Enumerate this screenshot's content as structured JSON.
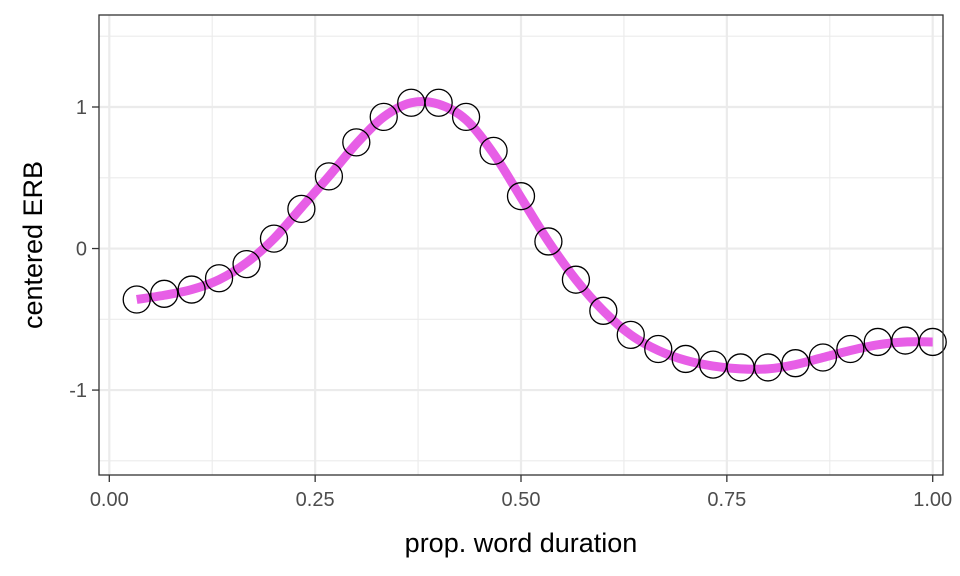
{
  "chart_data": {
    "type": "line",
    "title": "",
    "xlabel": "prop. word duration",
    "ylabel": "centered ERB",
    "xlim": [
      -0.0125,
      1.0125
    ],
    "ylim": [
      -1.6,
      1.65
    ],
    "x_ticks": [
      0.0,
      0.25,
      0.5,
      0.75,
      1.0
    ],
    "x_tick_labels": [
      "0.00",
      "0.25",
      "0.50",
      "0.75",
      "1.00"
    ],
    "y_ticks": [
      -1,
      0,
      1
    ],
    "y_tick_labels": [
      "-1",
      "0",
      "1"
    ],
    "grid": true,
    "legend": "none",
    "colors": {
      "line": "#e75ee6",
      "points_stroke": "#000000",
      "points_fill": "#ffffff",
      "grid": "#ebebeb"
    },
    "series": [
      {
        "type": "scatter",
        "x": [
          0.0333,
          0.0667,
          0.1,
          0.1333,
          0.1667,
          0.2,
          0.2333,
          0.2667,
          0.3,
          0.3333,
          0.3667,
          0.4,
          0.4333,
          0.4667,
          0.5,
          0.5333,
          0.5667,
          0.6,
          0.6333,
          0.6667,
          0.7,
          0.7333,
          0.7667,
          0.8,
          0.8333,
          0.8667,
          0.9,
          0.9333,
          0.9667,
          1.0
        ],
        "y": [
          -0.36,
          -0.32,
          -0.29,
          -0.21,
          -0.11,
          0.07,
          0.28,
          0.51,
          0.75,
          0.93,
          1.03,
          1.03,
          0.93,
          0.69,
          0.37,
          0.05,
          -0.22,
          -0.44,
          -0.61,
          -0.71,
          -0.78,
          -0.82,
          -0.84,
          -0.84,
          -0.81,
          -0.77,
          -0.71,
          -0.66,
          -0.65,
          -0.66
        ]
      },
      {
        "type": "line",
        "x": [
          0.0333,
          0.0667,
          0.1,
          0.1333,
          0.1667,
          0.2,
          0.2333,
          0.2667,
          0.3,
          0.3333,
          0.3667,
          0.4,
          0.4333,
          0.4667,
          0.5,
          0.5333,
          0.5667,
          0.6,
          0.6333,
          0.6667,
          0.7,
          0.7333,
          0.7667,
          0.8,
          0.8333,
          0.8667,
          0.9,
          0.9333,
          0.9667,
          1.0
        ],
        "y": [
          -0.36,
          -0.33,
          -0.29,
          -0.22,
          -0.1,
          0.07,
          0.29,
          0.51,
          0.74,
          0.93,
          1.03,
          1.02,
          0.91,
          0.67,
          0.36,
          0.05,
          -0.22,
          -0.44,
          -0.61,
          -0.72,
          -0.79,
          -0.83,
          -0.85,
          -0.85,
          -0.82,
          -0.77,
          -0.72,
          -0.68,
          -0.66,
          -0.66
        ]
      }
    ]
  }
}
